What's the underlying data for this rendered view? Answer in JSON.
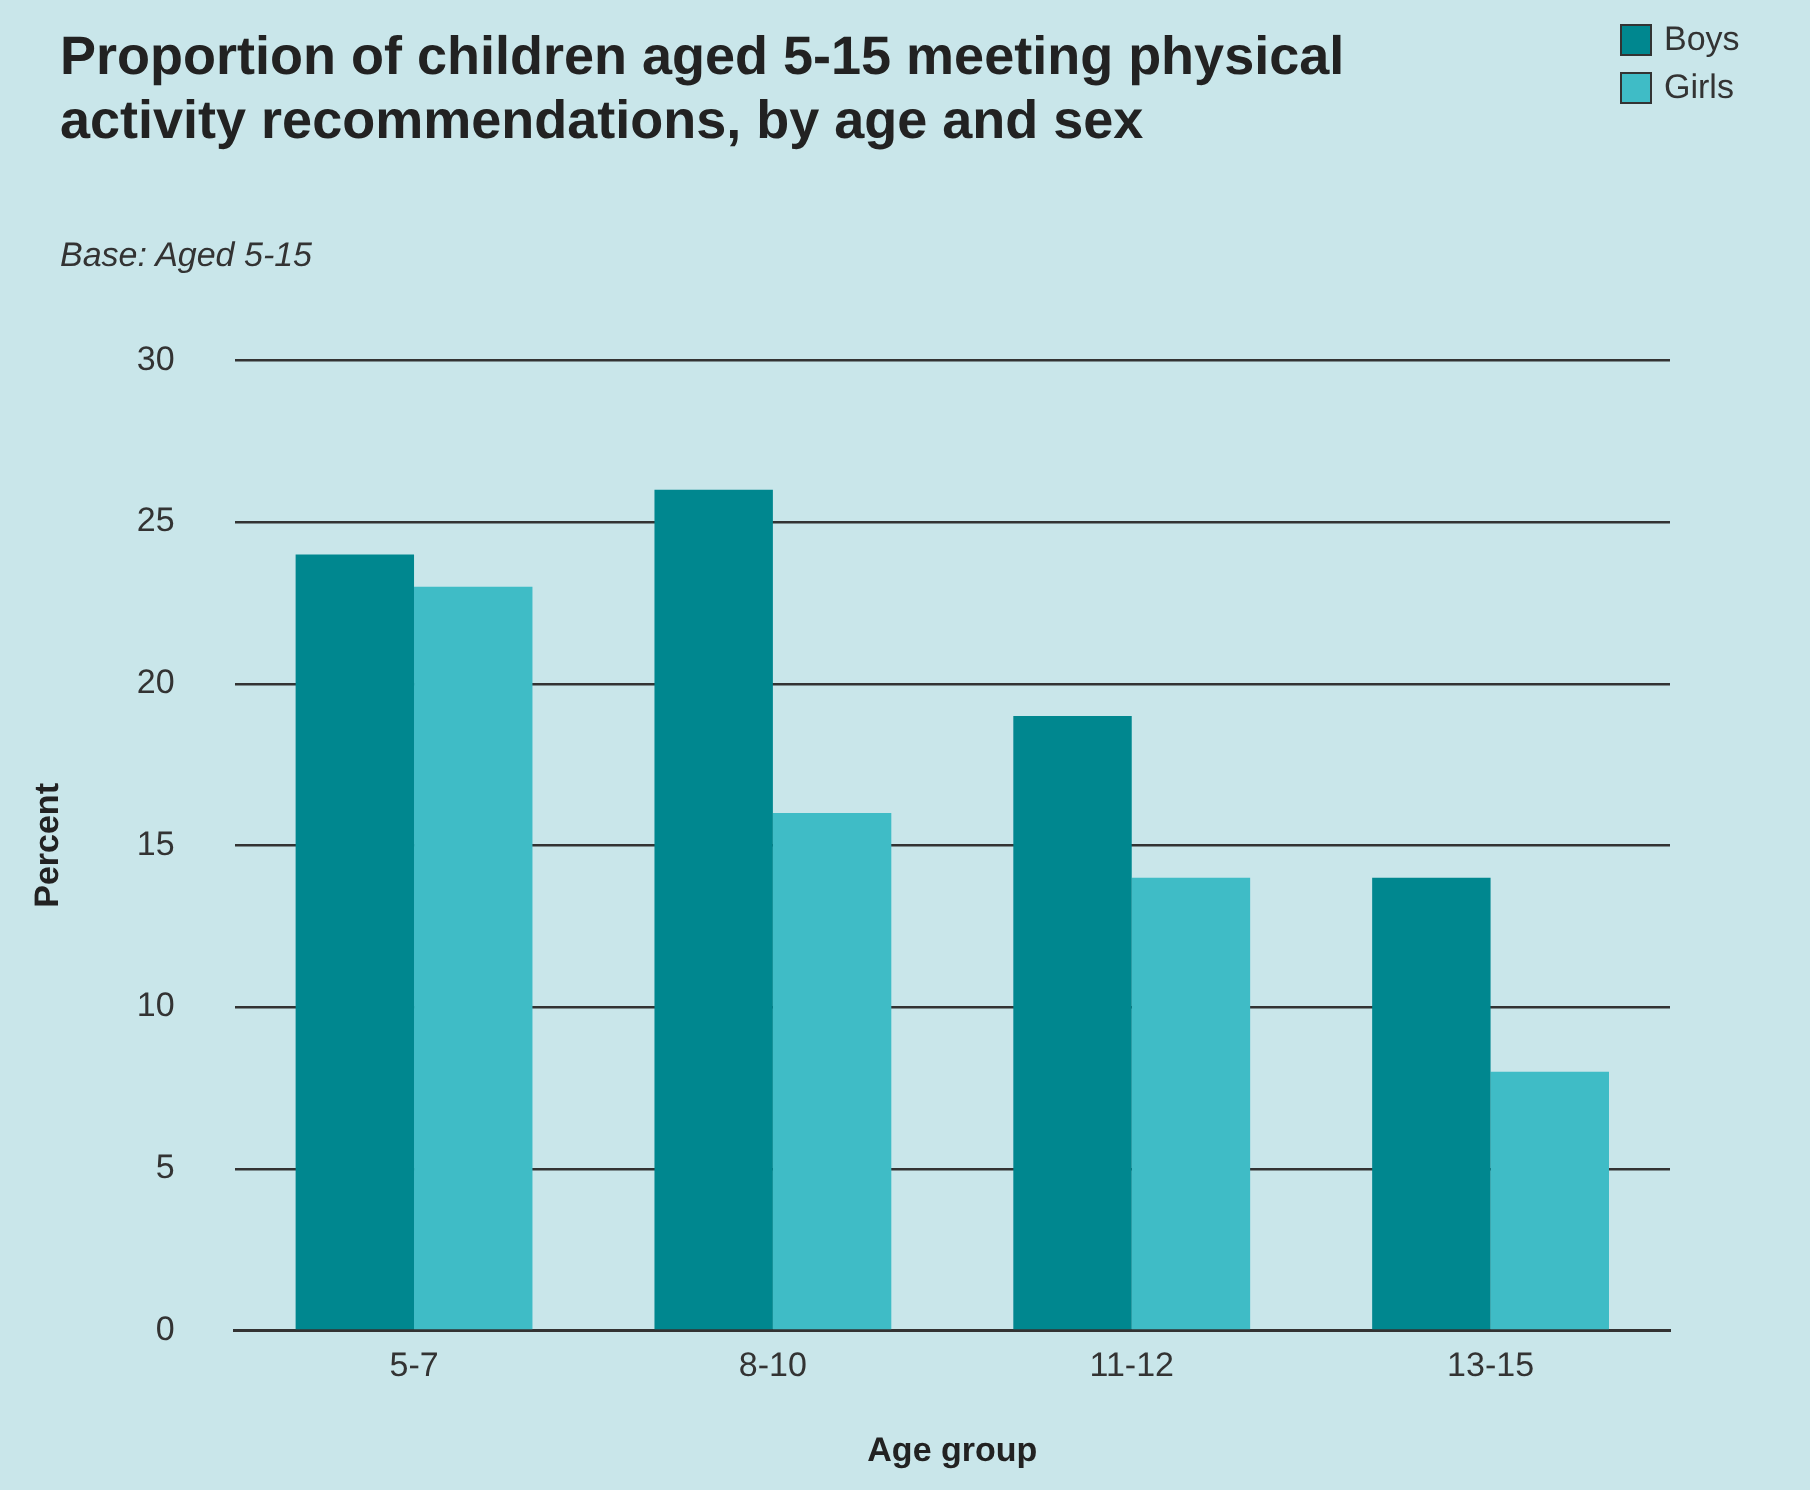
{
  "chart_data": {
    "type": "bar",
    "title": "Proportion of children aged 5-15 meeting physical activity recommendations, by age and sex",
    "subtitle": "Base: Aged 5-15",
    "xlabel": "Age group",
    "ylabel": "Percent",
    "categories": [
      "5-7",
      "8-10",
      "11-12",
      "13-15"
    ],
    "series": [
      {
        "name": "Boys",
        "color": "#00878f",
        "values": [
          24,
          26,
          19,
          14
        ]
      },
      {
        "name": "Girls",
        "color": "#3fbcc6",
        "values": [
          23,
          16,
          14,
          8
        ]
      }
    ],
    "ylim": [
      0,
      30
    ],
    "yticks": [
      0,
      5,
      10,
      15,
      20,
      25,
      30
    ],
    "grid": "y",
    "legend": "top right"
  }
}
